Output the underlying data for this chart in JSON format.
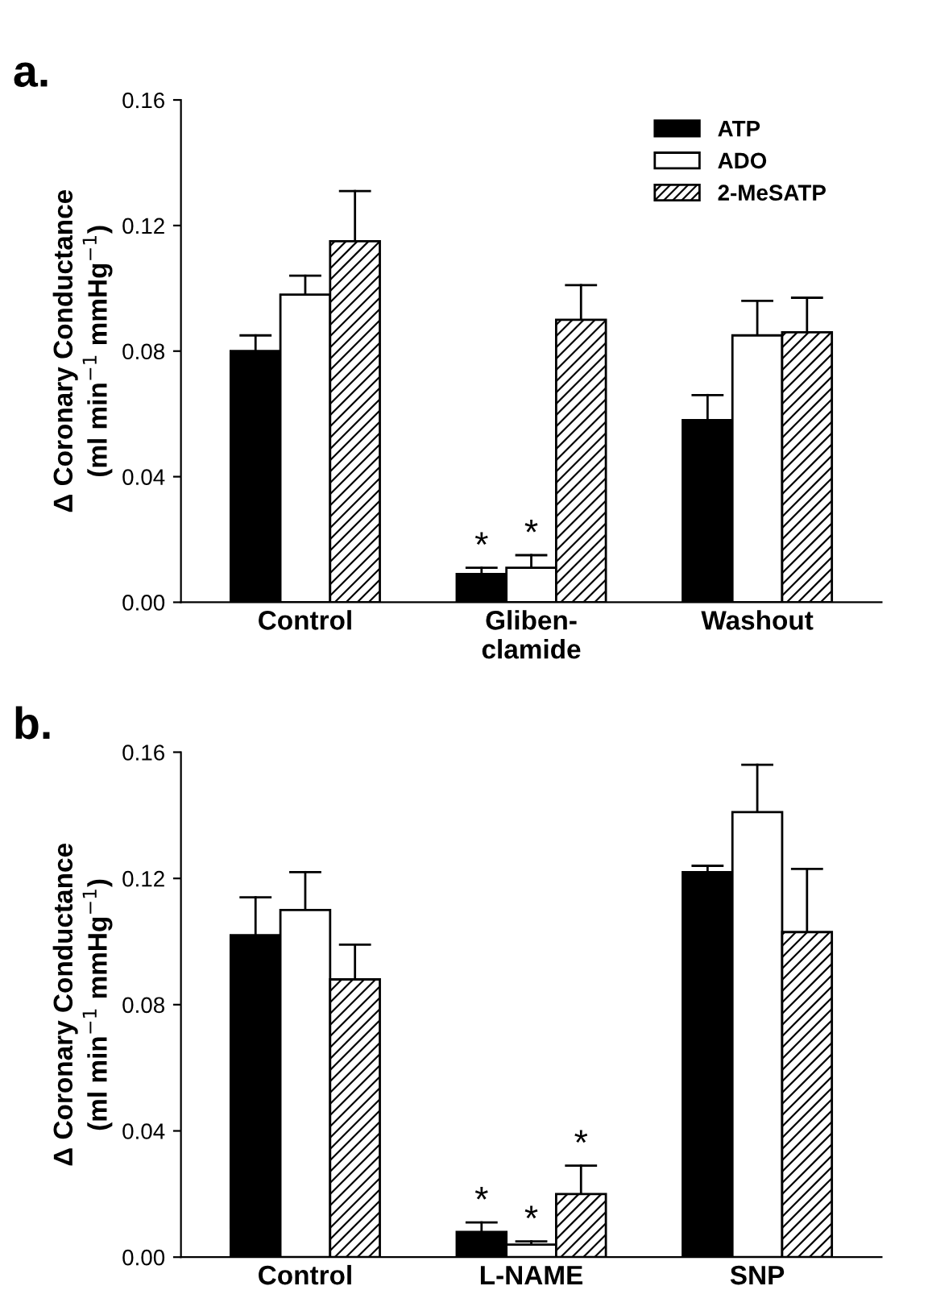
{
  "chart_data": [
    {
      "type": "bar",
      "title": "a.",
      "ylabel": "Δ Coronary Conductance\n(ml min$^{−1}$ mmHg$^{−1}$)",
      "categories": [
        "Control",
        "Gliben-\nclamide",
        "Washout"
      ],
      "series": [
        {
          "name": "ATP",
          "color": "#000000",
          "values": [
            0.08,
            0.009,
            0.058
          ],
          "errors": [
            [
              0.08,
              0.085
            ],
            [
              0.009,
              0.011
            ],
            [
              0.058,
              0.066
            ]
          ],
          "value_labels": [
            null,
            "*",
            null
          ]
        },
        {
          "name": "ADO",
          "color": "#ffffff",
          "values": [
            0.098,
            0.011,
            0.085
          ],
          "errors": [
            [
              0.098,
              0.104
            ],
            [
              0.011,
              0.015
            ],
            [
              0.085,
              0.096
            ]
          ],
          "value_labels": [
            null,
            "*",
            null
          ]
        },
        {
          "name": "2-MeSATP",
          "color": "#ffffff",
          "values": [
            0.115,
            0.09,
            0.086
          ],
          "errors": [
            [
              0.115,
              0.131
            ],
            [
              0.09,
              0.101
            ],
            [
              0.086,
              0.097
            ]
          ]
        }
      ],
      "ylim": [
        0,
        0.16
      ],
      "yticks": [
        {
          "value": 0,
          "label": "0.00"
        },
        {
          "value": 0.04,
          "label": "0.04"
        },
        {
          "value": 0.08,
          "label": "0.08"
        },
        {
          "value": 0.12,
          "label": "0.12"
        },
        {
          "value": 0.16,
          "label": "0.16"
        }
      ],
      "legend": "top right",
      "grid": false
    },
    {
      "type": "bar",
      "title": "b.",
      "ylabel": "Δ Coronary Conductance\n(ml min$^{−1}$ mmHg$^{−1}$)",
      "categories": [
        "Control",
        "L-NAME",
        "SNP"
      ],
      "series": [
        {
          "color": "#000000",
          "values": [
            0.102,
            0.008,
            0.122
          ],
          "errors": [
            [
              0.102,
              0.114
            ],
            [
              0.008,
              0.011
            ],
            [
              0.122,
              0.124
            ]
          ],
          "value_labels": [
            null,
            "*",
            null
          ]
        },
        {
          "color": "#ffffff",
          "values": [
            0.11,
            0.004,
            0.141
          ],
          "errors": [
            [
              0.11,
              0.122
            ],
            [
              0.004,
              0.005
            ],
            [
              0.141,
              0.156
            ]
          ],
          "value_labels": [
            null,
            "*",
            null
          ]
        },
        {
          "color": "#ffffff",
          "values": [
            0.088,
            0.02,
            0.103
          ],
          "errors": [
            [
              0.088,
              0.099
            ],
            [
              0.02,
              0.029
            ],
            [
              0.103,
              0.123
            ]
          ],
          "value_labels": [
            null,
            "*",
            null
          ]
        }
      ],
      "ylim": [
        0,
        0.16
      ],
      "yticks": [
        {
          "value": 0,
          "label": "0.00"
        },
        {
          "value": 0.04,
          "label": "0.04"
        },
        {
          "value": 0.08,
          "label": "0.08"
        },
        {
          "value": 0.12,
          "label": "0.12"
        },
        {
          "value": 0.16,
          "label": "0.16"
        }
      ],
      "legend": false,
      "grid": false
    }
  ]
}
